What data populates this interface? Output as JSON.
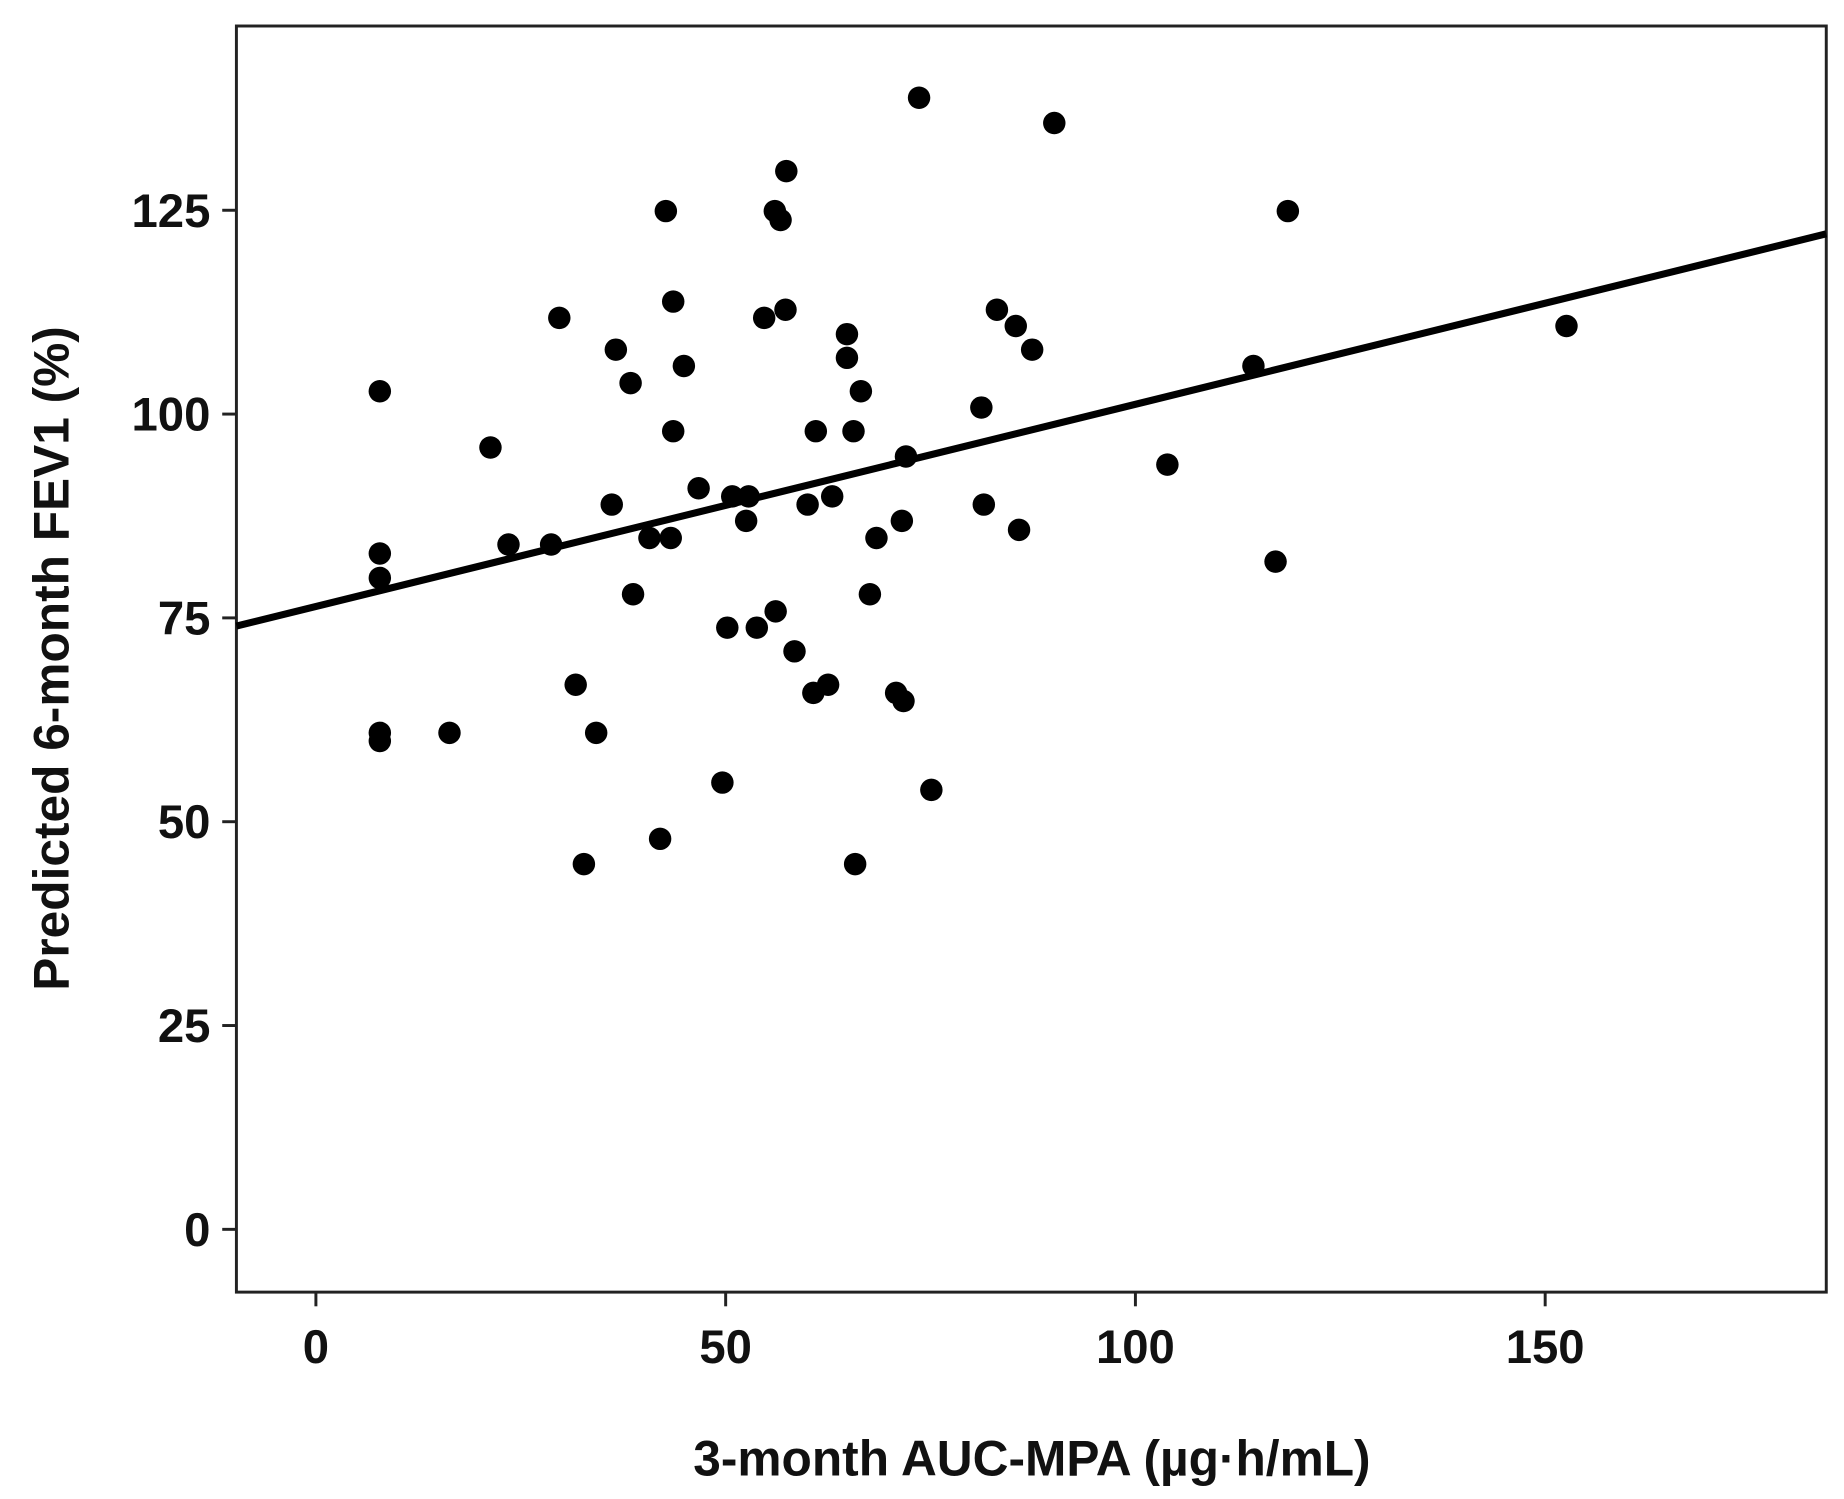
{
  "chart_data": {
    "type": "scatter",
    "title": "",
    "xlabel": "3-month AUC-MPA (µg·h/mL)",
    "ylabel": "Predicted 6-month FEV1 (%)",
    "xlim": [
      -9.7,
      184.3
    ],
    "ylim": [
      -7.7,
      147.6
    ],
    "xticks": [
      0,
      50,
      100,
      150
    ],
    "yticks": [
      0,
      25,
      50,
      75,
      100,
      125
    ],
    "grid": false,
    "legend": "none",
    "fit_line": {
      "intercept": 76.4,
      "slope": 0.248
    },
    "points": [
      [
        73.6,
        138.8
      ],
      [
        90.1,
        135.7
      ],
      [
        57.4,
        129.8
      ],
      [
        42.7,
        124.9
      ],
      [
        56.0,
        124.9
      ],
      [
        56.7,
        123.8
      ],
      [
        118.6,
        124.9
      ],
      [
        29.7,
        111.8
      ],
      [
        43.6,
        113.8
      ],
      [
        57.3,
        112.8
      ],
      [
        54.7,
        111.8
      ],
      [
        83.1,
        112.8
      ],
      [
        85.4,
        110.8
      ],
      [
        152.6,
        110.8
      ],
      [
        64.8,
        109.8
      ],
      [
        36.6,
        107.9
      ],
      [
        87.4,
        107.9
      ],
      [
        64.8,
        106.9
      ],
      [
        44.9,
        105.9
      ],
      [
        114.4,
        105.9
      ],
      [
        7.8,
        102.8
      ],
      [
        38.4,
        103.8
      ],
      [
        66.5,
        102.8
      ],
      [
        81.2,
        100.8
      ],
      [
        21.3,
        95.9
      ],
      [
        43.6,
        97.9
      ],
      [
        61.0,
        97.9
      ],
      [
        65.6,
        97.9
      ],
      [
        72.0,
        94.8
      ],
      [
        103.9,
        93.8
      ],
      [
        46.7,
        90.9
      ],
      [
        50.8,
        89.9
      ],
      [
        52.8,
        89.9
      ],
      [
        63.0,
        89.9
      ],
      [
        36.1,
        88.9
      ],
      [
        60.0,
        88.9
      ],
      [
        81.5,
        88.9
      ],
      [
        52.5,
        86.9
      ],
      [
        71.5,
        86.9
      ],
      [
        85.8,
        85.8
      ],
      [
        40.7,
        84.8
      ],
      [
        43.3,
        84.8
      ],
      [
        68.4,
        84.8
      ],
      [
        23.5,
        84.0
      ],
      [
        28.7,
        84.0
      ],
      [
        7.8,
        82.9
      ],
      [
        117.1,
        81.9
      ],
      [
        7.8,
        79.9
      ],
      [
        38.7,
        77.9
      ],
      [
        67.6,
        77.9
      ],
      [
        56.1,
        75.8
      ],
      [
        50.2,
        73.8
      ],
      [
        53.8,
        73.8
      ],
      [
        58.4,
        70.9
      ],
      [
        31.7,
        66.8
      ],
      [
        62.5,
        66.8
      ],
      [
        60.7,
        65.8
      ],
      [
        70.8,
        65.8
      ],
      [
        71.7,
        64.8
      ],
      [
        7.8,
        60.9
      ],
      [
        7.8,
        59.9
      ],
      [
        16.3,
        60.9
      ],
      [
        34.2,
        60.9
      ],
      [
        49.6,
        54.8
      ],
      [
        75.1,
        53.9
      ],
      [
        42.0,
        47.9
      ],
      [
        32.7,
        44.8
      ],
      [
        65.8,
        44.8
      ]
    ]
  }
}
